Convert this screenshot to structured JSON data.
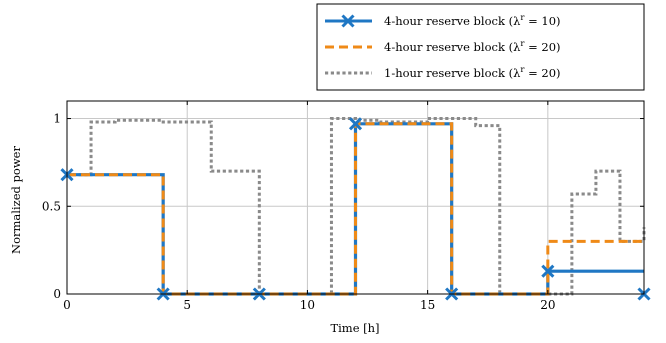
{
  "chart_data": {
    "type": "line",
    "xlabel": "Time [h]",
    "ylabel": "Normalized power",
    "xlim": [
      0,
      24
    ],
    "ylim": [
      0,
      1.1
    ],
    "xticks": [
      0,
      5,
      10,
      15,
      20
    ],
    "xtick_labels": [
      "0",
      "5",
      "10",
      "15",
      "20"
    ],
    "yticks": [
      0,
      0.5,
      1
    ],
    "ytick_labels": [
      "0",
      "0.5",
      "1"
    ],
    "grid": true,
    "legend_position": "top-right, above plot",
    "series": [
      {
        "name": "4-hour reserve block (λ",
        "name_sup": "r",
        "name_tail": " = 10)",
        "color": "#1f77c4",
        "style": "solid",
        "step": "post",
        "x": [
          0,
          4,
          4,
          8,
          8,
          12,
          12,
          16,
          16,
          20,
          20,
          24
        ],
        "y": [
          0.68,
          0.68,
          0,
          0,
          0,
          0,
          0.97,
          0.97,
          0,
          0,
          0.13,
          0.13
        ],
        "markers": [
          [
            0,
            0.68
          ],
          [
            4,
            0
          ],
          [
            8,
            0
          ],
          [
            12,
            0.97
          ],
          [
            16,
            0
          ],
          [
            20,
            0.13
          ],
          [
            24,
            0
          ]
        ]
      },
      {
        "name": "4-hour reserve block (λ",
        "name_sup": "r",
        "name_tail": " = 20)",
        "color": "#ef8a17",
        "style": "dashed",
        "step": "post",
        "x": [
          0,
          4,
          4,
          8,
          8,
          12,
          12,
          16,
          16,
          20,
          20,
          24
        ],
        "y": [
          0.68,
          0.68,
          0,
          0,
          0,
          0,
          0.97,
          0.97,
          0,
          0,
          0.3,
          0.3
        ]
      },
      {
        "name": "1-hour reserve block (λ",
        "name_sup": "r",
        "name_tail": " = 20)",
        "color": "#8a8a8a",
        "style": "dotted",
        "step": "post",
        "x": [
          0,
          1,
          2,
          3,
          4,
          5,
          6,
          7,
          8,
          9,
          10,
          11,
          12,
          13,
          14,
          15,
          16,
          17,
          18,
          19,
          20,
          21,
          22,
          23,
          24
        ],
        "y": [
          0.68,
          0.98,
          0.99,
          0.99,
          0.98,
          0.98,
          0.7,
          0.7,
          0,
          0,
          0,
          1.0,
          0.99,
          0.98,
          0.98,
          1.0,
          1.0,
          0.96,
          0,
          0,
          0,
          0.57,
          0.7,
          0.3,
          0.38
        ]
      }
    ]
  }
}
